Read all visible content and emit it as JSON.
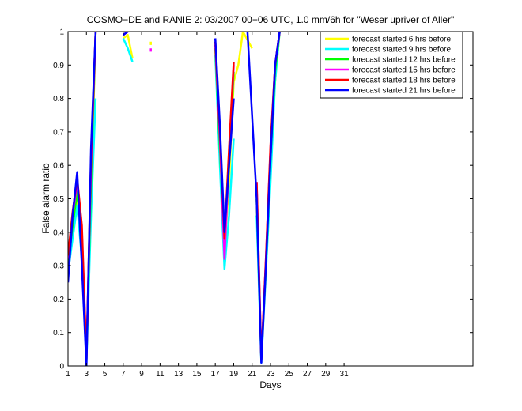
{
  "chart_data": {
    "type": "line",
    "title": "COSMO−DE and RANIE 2: 03/2007 00−06 UTC, 1.0 mm/6h for \"Weser upriver of Aller\"",
    "xlabel": "Days",
    "ylabel": "False alarm ratio",
    "xlim": [
      1,
      45
    ],
    "ylim": [
      0,
      1
    ],
    "xticks": [
      1,
      3,
      5,
      7,
      9,
      11,
      13,
      15,
      17,
      19,
      21,
      23,
      25,
      27,
      29,
      31
    ],
    "yticks": [
      0,
      0.1,
      0.2,
      0.3,
      0.4,
      0.5,
      0.6,
      0.7,
      0.8,
      0.9,
      1
    ],
    "ytick_labels": [
      "0",
      "0.1",
      "0.2",
      "0.3",
      "0.4",
      "0.5",
      "0.6",
      "0.7",
      "0.8",
      "0.9",
      "1"
    ],
    "grid": false,
    "legend_position": "top-right",
    "series": [
      {
        "name": "forecast started 6 hrs before",
        "color": "#ffff00",
        "x": [
          1,
          1.5,
          2,
          2.5,
          3,
          3.5,
          4,
          null,
          7,
          7.5,
          8,
          null,
          10,
          10,
          null,
          17,
          17.5,
          18,
          18.5,
          19,
          19.5,
          20,
          21,
          null,
          21.5,
          22,
          22.5,
          23,
          23.5,
          24
        ],
        "y": [
          0.3,
          0.4,
          0.5,
          0.35,
          0.02,
          0.5,
          1.0,
          null,
          0.98,
          0.99,
          0.92,
          null,
          0.96,
          0.97,
          null,
          0.95,
          0.7,
          0.35,
          0.55,
          0.85,
          0.9,
          1.0,
          0.95,
          null,
          0.5,
          0.02,
          0.3,
          0.6,
          0.85,
          1.0
        ]
      },
      {
        "name": "forecast started 9 hrs before",
        "color": "#00ffff",
        "x": [
          1,
          1.5,
          2,
          2.5,
          3,
          3.5,
          4,
          null,
          7,
          7.5,
          8,
          null,
          17,
          17.5,
          18,
          18.5,
          19,
          null,
          21.5,
          22,
          22.5,
          23,
          23.5,
          24
        ],
        "y": [
          0.28,
          0.38,
          0.48,
          0.32,
          0.01,
          0.45,
          0.8,
          null,
          0.98,
          0.95,
          0.91,
          null,
          0.93,
          0.6,
          0.29,
          0.45,
          0.68,
          null,
          0.45,
          0.01,
          0.28,
          0.55,
          0.85,
          1.0
        ]
      },
      {
        "name": "forecast started 12 hrs before",
        "color": "#00ff00",
        "x": [
          1,
          1.5,
          2,
          2.5,
          3,
          3.5,
          4,
          null,
          17,
          17.5,
          18,
          18.5,
          19,
          null,
          21.5,
          22,
          22.5,
          23,
          23.5,
          24
        ],
        "y": [
          0.3,
          0.42,
          0.52,
          0.38,
          0.02,
          0.55,
          1.0,
          null,
          0.95,
          0.65,
          0.35,
          0.6,
          0.88,
          null,
          0.5,
          0.02,
          0.3,
          0.62,
          0.88,
          1.0
        ]
      },
      {
        "name": "forecast started 15 hrs before",
        "color": "#ff00ff",
        "x": [
          1,
          1.5,
          2,
          2.5,
          3,
          3.5,
          4,
          null,
          7,
          7.5,
          null,
          10,
          10,
          null,
          17,
          17.5,
          18,
          18.5,
          19,
          null,
          21.5,
          22,
          22.5,
          23,
          23.5,
          24
        ],
        "y": [
          0.32,
          0.45,
          0.55,
          0.4,
          0.02,
          0.6,
          1.0,
          null,
          0.99,
          1.0,
          null,
          0.94,
          0.95,
          null,
          0.96,
          0.68,
          0.32,
          0.62,
          0.9,
          null,
          0.55,
          0.02,
          0.32,
          0.65,
          0.9,
          1.0
        ]
      },
      {
        "name": "forecast started 18 hrs before",
        "color": "#ff0000",
        "x": [
          1,
          1.5,
          2,
          2.5,
          3,
          3.5,
          4,
          null,
          7,
          7.5,
          null,
          17,
          17.5,
          18,
          18.5,
          19,
          null,
          21.5,
          22,
          22.5,
          23,
          23.5,
          24
        ],
        "y": [
          0.33,
          0.46,
          0.56,
          0.42,
          0.02,
          0.62,
          1.0,
          null,
          0.99,
          1.0,
          null,
          0.97,
          0.7,
          0.38,
          0.65,
          0.91,
          null,
          0.55,
          0.02,
          0.32,
          0.66,
          0.9,
          1.0
        ]
      },
      {
        "name": "forecast started 21 hrs before",
        "color": "#0000ff",
        "x": [
          1,
          1.5,
          2,
          2.5,
          3,
          3.5,
          4,
          null,
          7,
          7.5,
          null,
          17,
          17.5,
          18,
          18.5,
          19,
          null,
          20.5,
          21,
          21.5,
          22,
          22.5,
          23,
          23.5,
          24
        ],
        "y": [
          0.25,
          0.45,
          0.58,
          0.3,
          0.0,
          0.65,
          1.0,
          null,
          0.99,
          1.0,
          null,
          0.98,
          0.72,
          0.4,
          0.6,
          0.8,
          null,
          1.0,
          0.75,
          0.5,
          0.01,
          0.3,
          0.62,
          0.9,
          1.0
        ]
      }
    ]
  }
}
